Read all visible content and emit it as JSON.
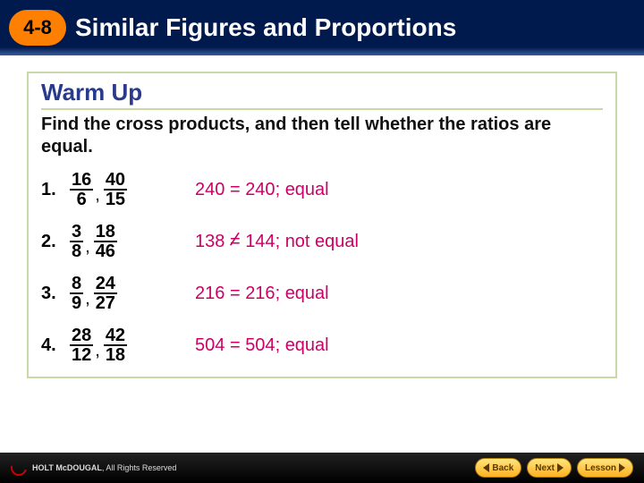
{
  "header": {
    "lesson_number": "4-8",
    "lesson_title": "Similar Figures and Proportions",
    "badge_bg": "#ff7f00",
    "bar_bg": "#001a4d",
    "title_color": "#ffffff"
  },
  "content": {
    "border_color": "#c8d8a8",
    "section_heading": "Warm Up",
    "heading_color": "#2a3a8a",
    "instruction": "Find the cross products, and then tell whether the ratios are equal.",
    "answer_color": "#cc0066",
    "problems": [
      {
        "number": "1.",
        "ratio1": {
          "num": "16",
          "den": "6"
        },
        "ratio2": {
          "num": "40",
          "den": "15"
        },
        "answer_left": "240",
        "relation": "=",
        "answer_right": "240",
        "verdict": "equal"
      },
      {
        "number": "2.",
        "ratio1": {
          "num": "3",
          "den": "8"
        },
        "ratio2": {
          "num": "18",
          "den": "46"
        },
        "answer_left": "138",
        "relation": "≠",
        "answer_right": "144",
        "verdict": "not equal"
      },
      {
        "number": "3.",
        "ratio1": {
          "num": "8",
          "den": "9"
        },
        "ratio2": {
          "num": "24",
          "den": "27"
        },
        "answer_left": "216",
        "relation": "=",
        "answer_right": "216",
        "verdict": "equal"
      },
      {
        "number": "4.",
        "ratio1": {
          "num": "28",
          "den": "12"
        },
        "ratio2": {
          "num": "42",
          "den": "18"
        },
        "answer_left": "504",
        "relation": "=",
        "answer_right": "504",
        "verdict": "equal"
      }
    ]
  },
  "footer": {
    "publisher": "HOLT McDOUGAL",
    "copyright": "All Rights Reserved",
    "nav": {
      "back": "Back",
      "next": "Next",
      "lesson": "Lesson"
    }
  }
}
